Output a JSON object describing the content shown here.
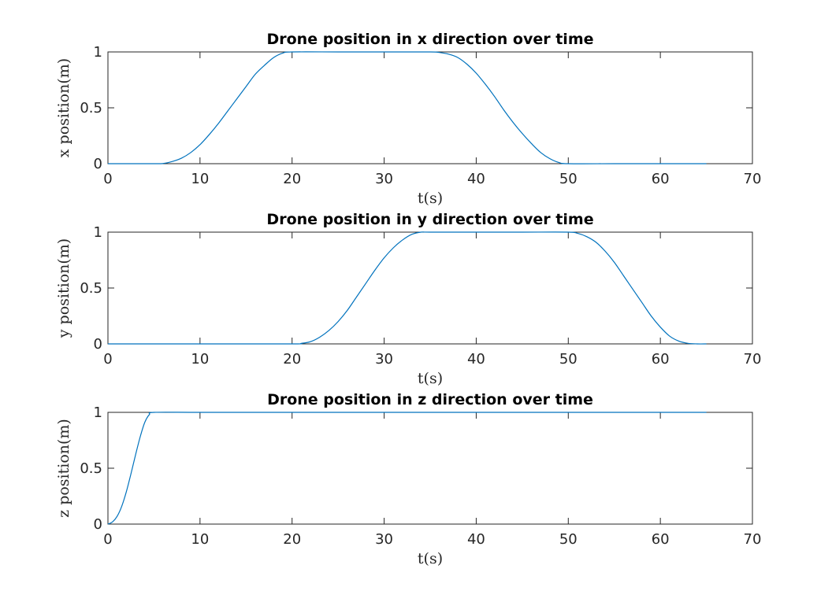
{
  "chart_data": [
    {
      "type": "line",
      "title": "Drone position in x direction over time",
      "xlabel": "t(s)",
      "ylabel": "x position(m)",
      "xlim": [
        0,
        70
      ],
      "ylim": [
        0,
        1
      ],
      "xticks": [
        "0",
        "10",
        "20",
        "30",
        "40",
        "50",
        "60",
        "70"
      ],
      "yticks": [
        "0",
        "0.5",
        "1"
      ],
      "grid": false,
      "color": "#0072BD",
      "series": [
        {
          "x": [
            0,
            5,
            6,
            7,
            8,
            9,
            10,
            11,
            12,
            13,
            14,
            15,
            16,
            17,
            18,
            19,
            20,
            25,
            30,
            35,
            36,
            37,
            38,
            39,
            40,
            41,
            42,
            43,
            44,
            45,
            46,
            47,
            48,
            49,
            50,
            55,
            60,
            65
          ],
          "y": [
            0,
            0,
            0.002,
            0.02,
            0.05,
            0.1,
            0.17,
            0.26,
            0.36,
            0.47,
            0.58,
            0.69,
            0.8,
            0.88,
            0.95,
            0.99,
            1,
            1,
            1,
            1,
            0.995,
            0.98,
            0.95,
            0.89,
            0.81,
            0.71,
            0.6,
            0.48,
            0.37,
            0.27,
            0.18,
            0.1,
            0.045,
            0.01,
            0,
            0,
            0,
            0
          ]
        }
      ]
    },
    {
      "type": "line",
      "title": "Drone position in y direction over time",
      "xlabel": "t(s)",
      "ylabel": "y position(m)",
      "xlim": [
        0,
        70
      ],
      "ylim": [
        0,
        1
      ],
      "xticks": [
        "0",
        "10",
        "20",
        "30",
        "40",
        "50",
        "60",
        "70"
      ],
      "yticks": [
        "0",
        "0.5",
        "1"
      ],
      "grid": false,
      "color": "#0072BD",
      "series": [
        {
          "x": [
            0,
            10,
            20,
            21,
            22,
            23,
            24,
            25,
            26,
            27,
            28,
            29,
            30,
            31,
            32,
            33,
            34,
            35,
            40,
            45,
            50,
            51,
            52,
            53,
            54,
            55,
            56,
            57,
            58,
            59,
            60,
            61,
            62,
            63,
            64,
            65
          ],
          "y": [
            0,
            0,
            0,
            0.005,
            0.02,
            0.06,
            0.12,
            0.2,
            0.3,
            0.42,
            0.54,
            0.66,
            0.77,
            0.86,
            0.93,
            0.98,
            1,
            1,
            1,
            1,
            1,
            0.99,
            0.96,
            0.91,
            0.83,
            0.73,
            0.61,
            0.49,
            0.37,
            0.25,
            0.15,
            0.07,
            0.025,
            0.005,
            0,
            0
          ]
        }
      ]
    },
    {
      "type": "line",
      "title": "Drone position in z direction over time",
      "xlabel": "t(s)",
      "ylabel": "z position(m)",
      "xlim": [
        0,
        70
      ],
      "ylim": [
        0,
        1
      ],
      "xticks": [
        "0",
        "10",
        "20",
        "30",
        "40",
        "50",
        "60",
        "70"
      ],
      "yticks": [
        "0",
        "0.5",
        "1"
      ],
      "grid": false,
      "color": "#0072BD",
      "series": [
        {
          "x": [
            0,
            0.5,
            1,
            1.5,
            2,
            2.5,
            3,
            3.5,
            4,
            4.5,
            5,
            10,
            20,
            30,
            40,
            50,
            60,
            65
          ],
          "y": [
            0,
            0.02,
            0.07,
            0.16,
            0.29,
            0.45,
            0.62,
            0.78,
            0.91,
            0.98,
            1,
            1,
            1,
            1,
            1,
            1,
            1,
            1
          ]
        }
      ]
    }
  ]
}
